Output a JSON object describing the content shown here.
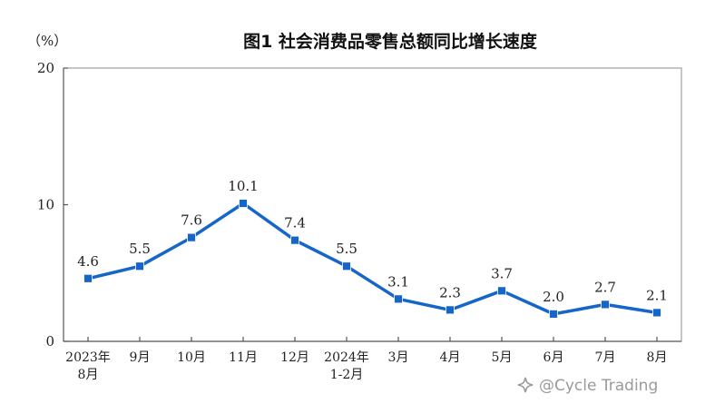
{
  "chart_data": {
    "type": "line",
    "title": "图1  社会消费品零售总额同比增长速度",
    "unit_label": "（%）",
    "categories": [
      "2023年\n8月",
      "9月",
      "10月",
      "11月",
      "12月",
      "2024年\n1-2月",
      "3月",
      "4月",
      "5月",
      "6月",
      "7月",
      "8月"
    ],
    "series": [
      {
        "values": [
          4.6,
          5.5,
          7.6,
          10.1,
          7.4,
          5.5,
          3.1,
          2.3,
          3.7,
          2.0,
          2.7,
          2.1
        ]
      }
    ],
    "value_labels": [
      "4.6",
      "5.5",
      "7.6",
      "10.1",
      "7.4",
      "5.5",
      "3.1",
      "2.3",
      "3.7",
      "2.0",
      "2.7",
      "2.1"
    ],
    "ylim": [
      0,
      20
    ],
    "yticks": [
      0,
      10,
      20
    ],
    "xlabel": "",
    "ylabel": "",
    "grid": false,
    "legend": "none",
    "series_color": "#1566c8"
  },
  "watermark": {
    "text": "@Cycle Trading",
    "icon": "sparkle-icon"
  }
}
